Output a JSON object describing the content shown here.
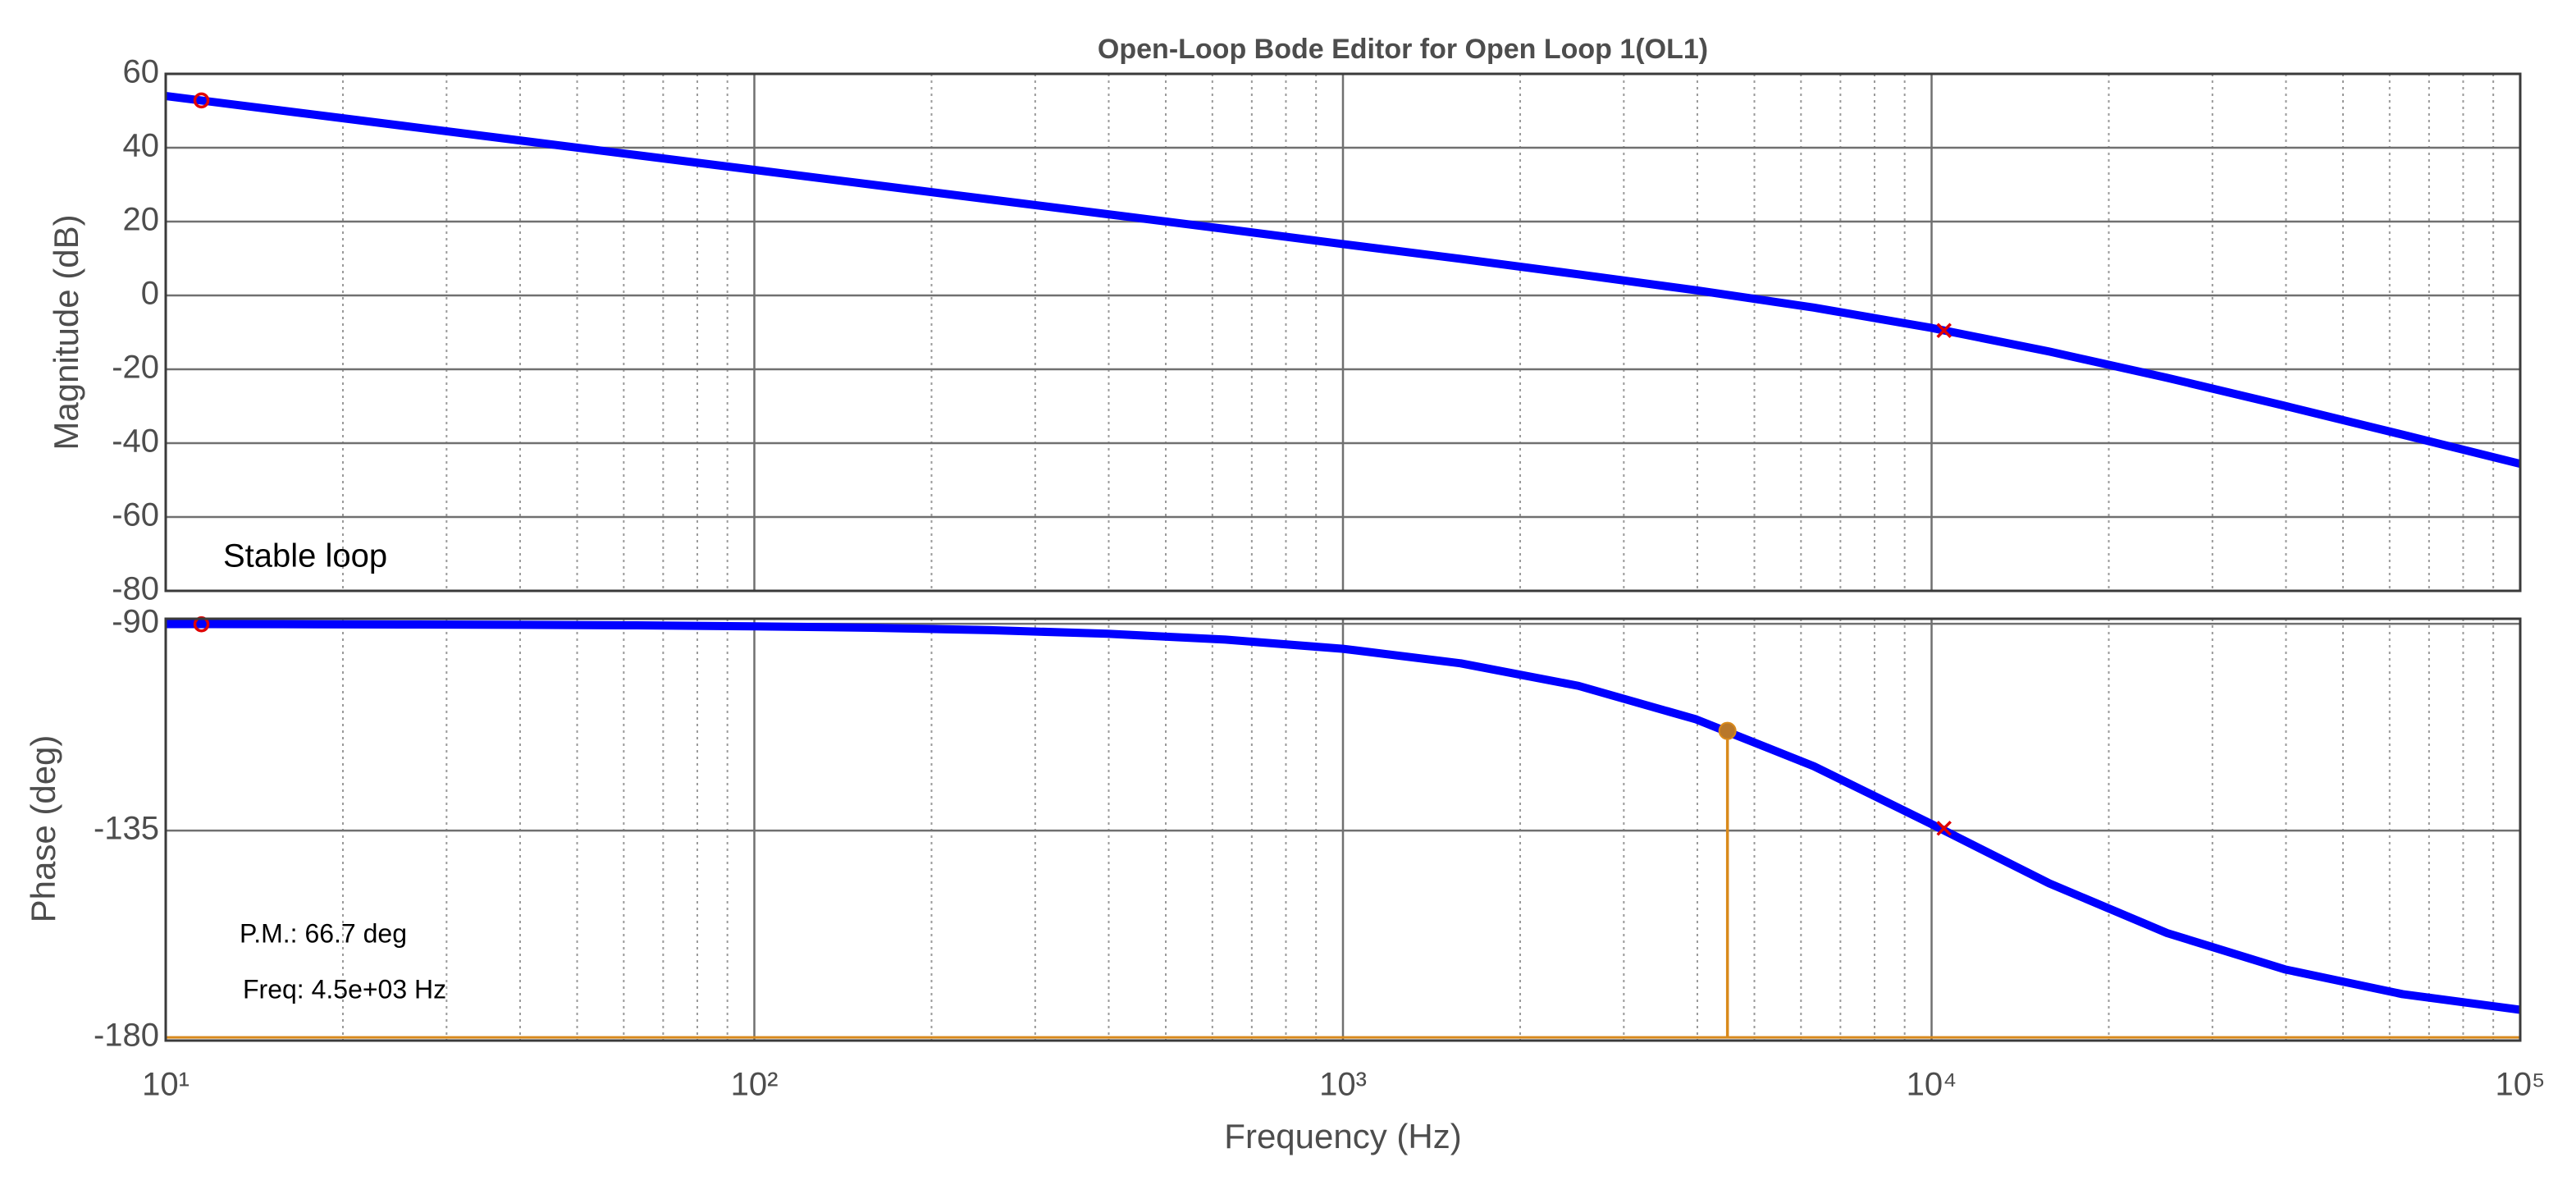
{
  "chart_data": [
    {
      "type": "line",
      "title": "Open-Loop Bode Editor for Open Loop 1(OL1)",
      "ylabel": "Magnitude (dB)",
      "annotations": [
        "Stable loop"
      ],
      "color": "#0000ff",
      "xscale": "log",
      "grid": true,
      "x": [
        10,
        15.85,
        25.12,
        39.81,
        63.1,
        100,
        158.5,
        251.2,
        398.1,
        631,
        1000,
        1585,
        2512,
        3981,
        6310,
        10000,
        15850,
        25120,
        39810,
        63100,
        100000
      ],
      "values": [
        54.0,
        50.0,
        46.0,
        42.0,
        38.0,
        34.0,
        30.0,
        26.0,
        22.0,
        18.0,
        13.9,
        9.9,
        5.7,
        1.4,
        -3.3,
        -8.8,
        -15.2,
        -22.3,
        -29.9,
        -37.7,
        -45.6
      ],
      "xlim": [
        10,
        100000
      ],
      "xticks": [
        {
          "value": 10,
          "label": "10¹"
        },
        {
          "value": 100,
          "label": "10²"
        },
        {
          "value": 1000,
          "label": "10³"
        },
        {
          "value": 10000,
          "label": "10⁴"
        },
        {
          "value": 100000,
          "label": "10⁵"
        }
      ],
      "x_minor_ticks": [
        20,
        30,
        40,
        50,
        60,
        70,
        80,
        90,
        200,
        300,
        400,
        500,
        600,
        700,
        800,
        900,
        2000,
        3000,
        4000,
        5000,
        6000,
        7000,
        8000,
        9000,
        20000,
        30000,
        40000,
        50000,
        60000,
        70000,
        80000,
        90000
      ],
      "ylim": [
        -80,
        60
      ],
      "yticks": [
        -80,
        -60,
        -40,
        -20,
        0,
        20,
        40,
        60
      ],
      "markers": [
        {
          "shape": "o",
          "x": 11.5,
          "value": 52.8,
          "color": "#e00000"
        },
        {
          "shape": "x",
          "x": 10500,
          "value": -9.5,
          "color": "#e00000"
        }
      ]
    },
    {
      "type": "line",
      "ylabel": "Phase (deg)",
      "xlabel": "Frequency (Hz)",
      "annotations": [
        "P.M.: 66.7 deg",
        "Freq: 4.5e+03 Hz"
      ],
      "color": "#0000ff",
      "xscale": "log",
      "grid": true,
      "x": [
        10,
        15.85,
        25.12,
        39.81,
        63.1,
        100,
        158.5,
        251.2,
        398.1,
        631,
        1000,
        1585,
        2512,
        3981,
        6310,
        10000,
        15850,
        25120,
        39810,
        63100,
        100000
      ],
      "values": [
        -90.05,
        -90.09,
        -90.14,
        -90.22,
        -90.34,
        -90.55,
        -90.86,
        -91.37,
        -92.17,
        -93.44,
        -95.44,
        -98.6,
        -103.5,
        -110.8,
        -121.0,
        -133.6,
        -146.5,
        -157.3,
        -165.2,
        -170.6,
        -174.0
      ],
      "xlim": [
        10,
        100000
      ],
      "xticks": [
        {
          "value": 10,
          "label": "10¹"
        },
        {
          "value": 100,
          "label": "10²"
        },
        {
          "value": 1000,
          "label": "10³"
        },
        {
          "value": 10000,
          "label": "10⁴"
        },
        {
          "value": 100000,
          "label": "10⁵"
        }
      ],
      "x_minor_ticks": [
        20,
        30,
        40,
        50,
        60,
        70,
        80,
        90,
        200,
        300,
        400,
        500,
        600,
        700,
        800,
        900,
        2000,
        3000,
        4000,
        5000,
        6000,
        7000,
        8000,
        9000,
        20000,
        30000,
        40000,
        50000,
        60000,
        70000,
        80000,
        90000
      ],
      "ylim": [
        -180.7,
        -88.9
      ],
      "yticks": [
        -180,
        -135,
        -90
      ],
      "markers": [
        {
          "shape": "o",
          "x": 11.5,
          "value": -90.1,
          "color": "#e00000"
        },
        {
          "shape": "x",
          "x": 10500,
          "value": -134.5,
          "color": "#e00000"
        }
      ],
      "margin": {
        "x": 4500,
        "value": -113.3,
        "base": -180,
        "color": "#d98a1c"
      }
    }
  ]
}
